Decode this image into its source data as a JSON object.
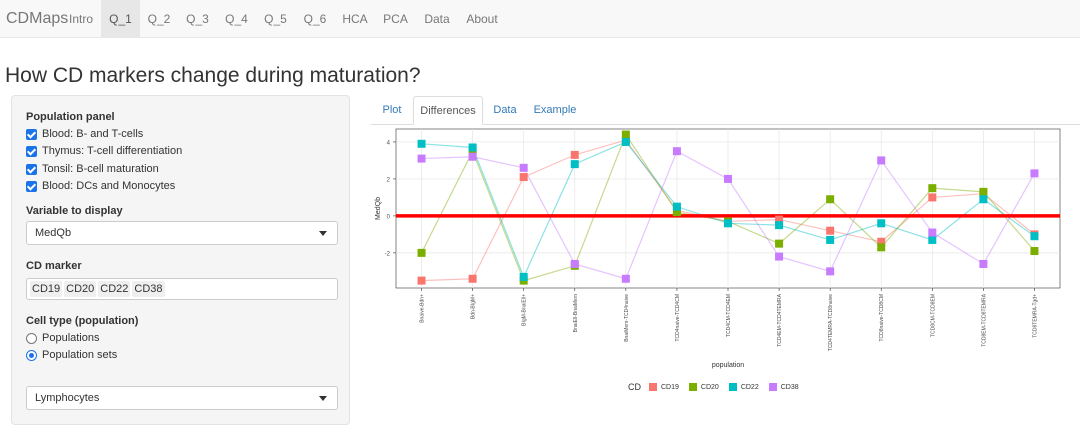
{
  "navbar": {
    "brand": "CDMaps",
    "items": [
      "Intro",
      "Q_1",
      "Q_2",
      "Q_3",
      "Q_4",
      "Q_5",
      "Q_6",
      "HCA",
      "PCA",
      "Data",
      "About"
    ],
    "active": "Q_1"
  },
  "page": {
    "title": "How CD markers change during maturation?"
  },
  "sidebar": {
    "population_panel_label": "Population panel",
    "population_panel": [
      {
        "label": "Blood: B- and T-cells",
        "checked": true
      },
      {
        "label": "Thymus: T-cell differentiation",
        "checked": true
      },
      {
        "label": "Tonsil: B-cell maturation",
        "checked": true
      },
      {
        "label": "Blood: DCs and Monocytes",
        "checked": true
      }
    ],
    "variable_label": "Variable to display",
    "variable_value": "MedQb",
    "cd_marker_label": "CD marker",
    "cd_markers": [
      "CD19",
      "CD20",
      "CD22",
      "CD38"
    ],
    "cell_type_label": "Cell type (population)",
    "cell_type_options": [
      {
        "label": "Populations",
        "checked": false
      },
      {
        "label": "Population sets",
        "checked": true
      }
    ],
    "population_set_value": "Lymphocytes"
  },
  "tabs": {
    "items": [
      "Plot",
      "Differences",
      "Data",
      "Example"
    ],
    "active": "Differences"
  },
  "chart_data": {
    "type": "line",
    "xlabel": "population",
    "ylabel": "MedQb",
    "ylim": [
      -3.9,
      4.7
    ],
    "yticks": [
      -2,
      0,
      2,
      4
    ],
    "grid": true,
    "reference_line": {
      "y": 0,
      "color": "#ff0000"
    },
    "legend_title": "CD",
    "legend_position": "bottom",
    "categories": [
      "Bnaive-Bdn+",
      "Bdn-BIgM+",
      "BIgM-BnaiEll+",
      "BnaiEll-BnaiMem",
      "BnaiMem-TCD4naive",
      "TCD4naive-TCD4CM",
      "TCD4CM-TCD4EM",
      "TCD4EM-TCD4TEMRA",
      "TCD4TEMRA-TCD8naive",
      "TCD8naive-TCD8CM",
      "TCD8CM-TCD8EM",
      "TCD8EM-TCD8TEMRA",
      "TCD8TEMRA-Tgd+"
    ],
    "series": [
      {
        "name": "CD19",
        "color": "#f8766d",
        "values": [
          -3.5,
          -3.4,
          2.1,
          3.3,
          4.1,
          0.3,
          -0.3,
          -0.2,
          -0.8,
          -1.4,
          1.0,
          1.2,
          -1.0
        ]
      },
      {
        "name": "CD20",
        "color": "#7cae00",
        "values": [
          -2.0,
          3.5,
          -3.5,
          -2.7,
          4.4,
          0.2,
          -0.3,
          -1.5,
          0.9,
          -1.7,
          1.5,
          1.3,
          -1.9
        ]
      },
      {
        "name": "CD22",
        "color": "#00bfc4",
        "values": [
          3.9,
          3.7,
          -3.3,
          2.8,
          4.0,
          0.5,
          -0.4,
          -0.5,
          -1.3,
          -0.4,
          -1.3,
          0.9,
          -1.1
        ]
      },
      {
        "name": "CD38",
        "color": "#c77cff",
        "values": [
          3.1,
          3.2,
          2.6,
          -2.6,
          -3.4,
          3.5,
          2.0,
          -2.2,
          -3.0,
          3.0,
          -0.9,
          -2.6,
          2.3
        ]
      }
    ]
  }
}
